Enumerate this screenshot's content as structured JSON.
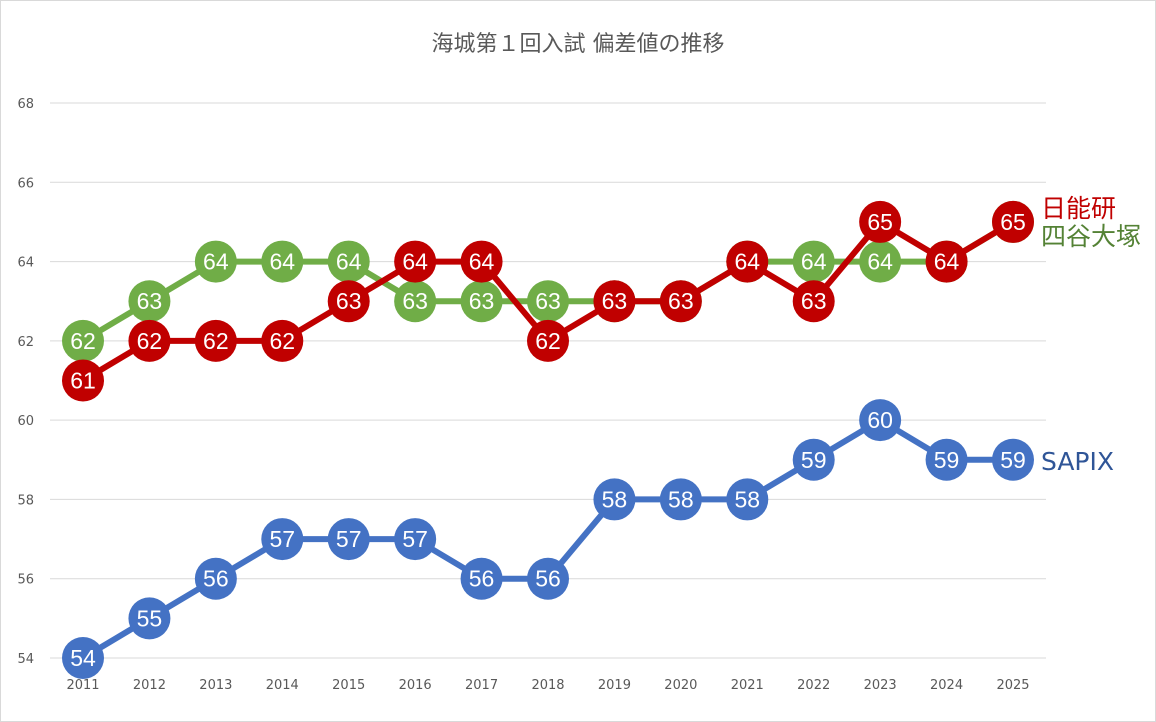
{
  "chart_data": {
    "type": "line",
    "title": "海城第１回入試 偏差値の推移",
    "categories": [
      "2011",
      "2012",
      "2013",
      "2014",
      "2015",
      "2016",
      "2017",
      "2018",
      "2019",
      "2020",
      "2021",
      "2022",
      "2023",
      "2024",
      "2025"
    ],
    "ylim": [
      54,
      68
    ],
    "yticks": [
      54,
      56,
      58,
      60,
      62,
      64,
      66,
      68
    ],
    "grid": true,
    "data_labels": true,
    "series": [
      {
        "name": "四谷大塚",
        "color": "#70ad47",
        "label_color": "#548235",
        "values": [
          62,
          63,
          64,
          64,
          64,
          63,
          63,
          63,
          63,
          63,
          64,
          64,
          64,
          64,
          65
        ]
      },
      {
        "name": "日能研",
        "color": "#c00000",
        "label_color": "#c00000",
        "values": [
          61,
          62,
          62,
          62,
          63,
          64,
          64,
          62,
          63,
          63,
          64,
          63,
          65,
          64,
          65
        ]
      },
      {
        "name": "SAPIX",
        "color": "#4472c4",
        "label_color": "#2f5597",
        "values": [
          54,
          55,
          56,
          57,
          57,
          57,
          56,
          56,
          58,
          58,
          58,
          59,
          60,
          59,
          59
        ]
      }
    ]
  }
}
